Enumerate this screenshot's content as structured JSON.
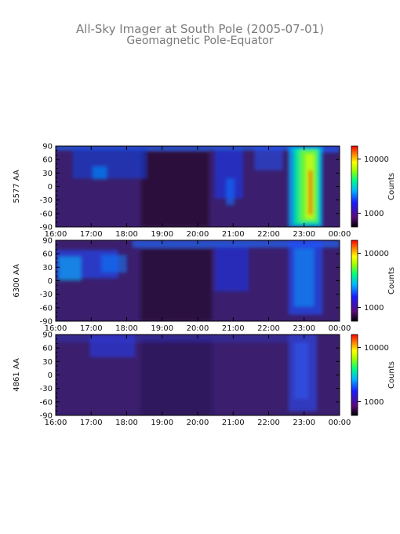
{
  "title": "All-Sky Imager at South Pole (2005-07-01)",
  "subtitle": "Geomagnetic Pole-Equator",
  "colors": {
    "background": "#3b1f6e",
    "colormap": [
      "#000000",
      "#5a0a7a",
      "#1a1aff",
      "#00b4ff",
      "#00ff80",
      "#a0ff00",
      "#ffff00",
      "#ff8000",
      "#ff0000"
    ]
  },
  "chart_data": [
    {
      "type": "heatmap",
      "ylabel": "5577 AA",
      "colorbar_label": "Counts",
      "colorbar_ticks": [
        "10000",
        "1000"
      ],
      "x_ticks": [
        "16:00",
        "17:00",
        "18:00",
        "19:00",
        "20:00",
        "21:00",
        "22:00",
        "23:00",
        "00:00"
      ],
      "y_ticks": [
        "90",
        "60",
        "30",
        "0",
        "-30",
        "-60",
        "-90"
      ],
      "xlim": [
        "16:00",
        "00:00"
      ],
      "ylim": [
        -90,
        90
      ]
    },
    {
      "type": "heatmap",
      "ylabel": "6300 AA",
      "colorbar_label": "Counts",
      "colorbar_ticks": [
        "10000",
        "1000"
      ],
      "x_ticks": [
        "16:00",
        "17:00",
        "18:00",
        "19:00",
        "20:00",
        "21:00",
        "22:00",
        "23:00",
        "00:00"
      ],
      "y_ticks": [
        "90",
        "60",
        "30",
        "0",
        "-30",
        "-60",
        "-90"
      ],
      "xlim": [
        "16:00",
        "00:00"
      ],
      "ylim": [
        -90,
        90
      ]
    },
    {
      "type": "heatmap",
      "ylabel": "4861 AA",
      "colorbar_label": "Counts",
      "colorbar_ticks": [
        "10000",
        "1000"
      ],
      "x_ticks": [
        "16:00",
        "17:00",
        "18:00",
        "19:00",
        "20:00",
        "21:00",
        "22:00",
        "23:00",
        "00:00"
      ],
      "y_ticks": [
        "90",
        "60",
        "30",
        "0",
        "-30",
        "-60",
        "-90"
      ],
      "xlim": [
        "16:00",
        "00:00"
      ],
      "ylim": [
        -90,
        90
      ]
    }
  ]
}
